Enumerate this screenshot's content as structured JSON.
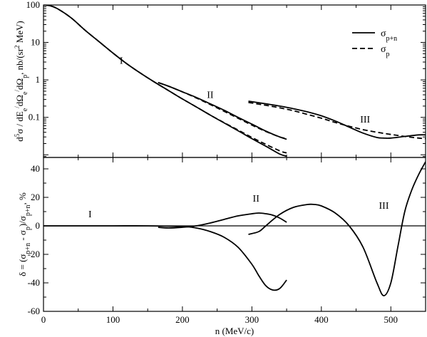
{
  "chart_data": [
    {
      "type": "line",
      "scale": "log",
      "ylim": [
        0.0085,
        100
      ],
      "xlim": [
        0,
        550
      ],
      "ylabel": "d⁵σ / dEₑ′dΩₑ′dΩₚ,  nb/(sr² MeV)",
      "yticks": [
        {
          "v": 0.1,
          "label": "0.1"
        },
        {
          "v": 1,
          "label": "1"
        },
        {
          "v": 10,
          "label": "10"
        },
        {
          "v": 100,
          "label": "100"
        }
      ],
      "region_labels": [
        {
          "text": "I",
          "x": 112,
          "y": 2.7
        },
        {
          "text": "II",
          "x": 240,
          "y": 0.33
        },
        {
          "text": "III",
          "x": 463,
          "y": 0.072
        }
      ],
      "legend": [
        {
          "label": "σp+n",
          "style": "solid"
        },
        {
          "label": "σp",
          "style": "dashed"
        }
      ],
      "series": [
        {
          "name": "σp+n",
          "style": "solid",
          "segment": "I",
          "x": [
            0,
            10,
            20,
            40,
            60,
            80,
            100,
            120,
            140,
            160,
            180,
            200,
            220,
            240,
            260,
            280,
            300,
            320,
            340,
            350
          ],
          "y": [
            100,
            95,
            80,
            45,
            21,
            10.5,
            5.2,
            2.7,
            1.5,
            0.87,
            0.52,
            0.31,
            0.19,
            0.115,
            0.071,
            0.044,
            0.027,
            0.017,
            0.0105,
            0.0092
          ]
        },
        {
          "name": "σp",
          "style": "dashed",
          "segment": "I",
          "x": [
            0,
            10,
            20,
            40,
            60,
            80,
            100,
            120,
            140,
            160,
            180,
            200,
            220,
            240,
            260,
            280,
            300,
            320,
            340,
            350
          ],
          "y": [
            100,
            95,
            80,
            45,
            21,
            10.5,
            5.2,
            2.7,
            1.5,
            0.87,
            0.52,
            0.31,
            0.19,
            0.115,
            0.072,
            0.046,
            0.029,
            0.019,
            0.0128,
            0.0112
          ]
        },
        {
          "name": "σp+n",
          "style": "solid",
          "segment": "II",
          "x": [
            165,
            180,
            200,
            220,
            240,
            260,
            280,
            300,
            320,
            340,
            350
          ],
          "y": [
            0.85,
            0.68,
            0.48,
            0.34,
            0.23,
            0.155,
            0.1,
            0.066,
            0.043,
            0.03,
            0.026
          ]
        },
        {
          "name": "σp",
          "style": "dashed",
          "segment": "II",
          "x": [
            165,
            180,
            200,
            220,
            240,
            260,
            280,
            300,
            320,
            340,
            350
          ],
          "y": [
            0.85,
            0.68,
            0.48,
            0.33,
            0.22,
            0.145,
            0.095,
            0.062,
            0.042,
            0.03,
            0.027
          ]
        },
        {
          "name": "σp+n",
          "style": "solid",
          "segment": "III",
          "x": [
            295,
            320,
            340,
            360,
            380,
            400,
            420,
            440,
            460,
            480,
            490,
            500,
            520,
            540,
            550
          ],
          "y": [
            0.27,
            0.23,
            0.2,
            0.17,
            0.14,
            0.11,
            0.08,
            0.055,
            0.038,
            0.029,
            0.028,
            0.028,
            0.031,
            0.034,
            0.034
          ]
        },
        {
          "name": "σp",
          "style": "dashed",
          "segment": "III",
          "x": [
            295,
            320,
            340,
            360,
            380,
            400,
            420,
            440,
            460,
            480,
            500,
            520,
            540,
            550
          ],
          "y": [
            0.25,
            0.21,
            0.18,
            0.15,
            0.12,
            0.095,
            0.073,
            0.058,
            0.047,
            0.04,
            0.035,
            0.031,
            0.028,
            0.027
          ]
        }
      ]
    },
    {
      "type": "line",
      "xlim": [
        0,
        550
      ],
      "ylim": [
        -60,
        48
      ],
      "xlabel": "n  (MeV/c)",
      "ylabel": "δ = (σp+n - σp)/σp+n, %",
      "xticks": [
        0,
        100,
        200,
        300,
        400,
        500
      ],
      "yticks": [
        -60,
        -40,
        -20,
        0,
        20,
        40
      ],
      "region_labels": [
        {
          "text": "I",
          "x": 67,
          "y": 6
        },
        {
          "text": "II",
          "x": 306,
          "y": 17
        },
        {
          "text": "III",
          "x": 490,
          "y": 12
        }
      ],
      "series": [
        {
          "name": "δ",
          "segment": "I",
          "x": [
            0,
            50,
            100,
            150,
            200,
            220,
            240,
            260,
            280,
            300,
            310,
            320,
            330,
            340,
            350
          ],
          "y": [
            0,
            0,
            0,
            0,
            -0.5,
            -1.5,
            -4,
            -8,
            -15,
            -27,
            -35,
            -42,
            -45,
            -44,
            -38
          ]
        },
        {
          "name": "δ",
          "segment": "II",
          "x": [
            165,
            180,
            200,
            220,
            240,
            260,
            280,
            300,
            310,
            320,
            330,
            340,
            350
          ],
          "y": [
            -1,
            -1.5,
            -1,
            0,
            2,
            4.5,
            7,
            8.5,
            9,
            8.5,
            7.5,
            5.5,
            2.5
          ]
        },
        {
          "name": "δ",
          "segment": "III",
          "x": [
            295,
            310,
            320,
            340,
            360,
            380,
            390,
            400,
            420,
            440,
            460,
            480,
            490,
            500,
            510,
            520,
            530,
            540,
            550
          ],
          "y": [
            -6,
            -4,
            0,
            8,
            13,
            15,
            15,
            14,
            9,
            0,
            -15,
            -40,
            -49,
            -40,
            -15,
            10,
            25,
            36,
            45
          ]
        }
      ]
    }
  ]
}
